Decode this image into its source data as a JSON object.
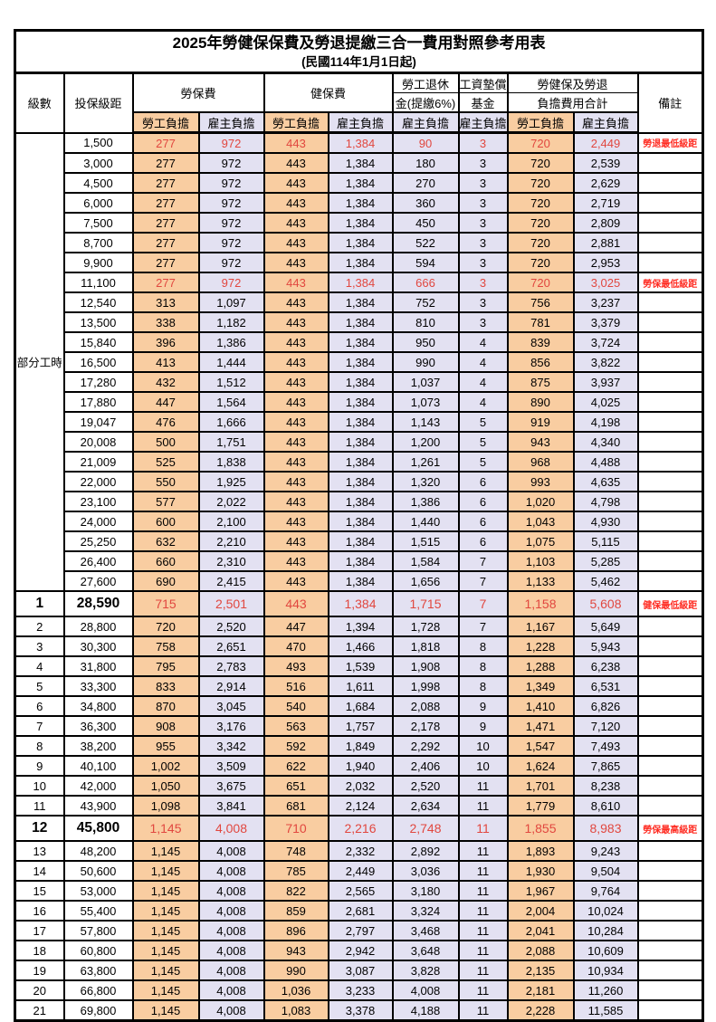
{
  "title": "2025年勞健保保費及勞退提繳三合一費用對照參考用表",
  "subtitle": "(民國114年1月1日起)",
  "colors": {
    "employee_bg": "#f9cda1",
    "employer_bg": "#e3e1f2",
    "value_red": "#e1473f",
    "remark_red": "#ff2d23",
    "border": "#000000"
  },
  "header": {
    "level": "級數",
    "bracket": "投保級距",
    "labor_insurance": "勞保費",
    "health_insurance": "健保費",
    "pension_line1": "勞工退休",
    "pension_line2": "金(提繳6%)",
    "wage_fund_line1": "工資墊償",
    "wage_fund_line2": "基金",
    "total_line1": "勞健保及勞退",
    "total_line2": "負擔費用合計",
    "remark": "備註",
    "employee": "勞工負擔",
    "employer": "雇主負擔"
  },
  "part_time_label": "部分工時",
  "rows": [
    {
      "level": null,
      "bracket": "1,500",
      "values": [
        "277",
        "972",
        "443",
        "1,384",
        "90",
        "3",
        "720",
        "2,449"
      ],
      "remark": "勞退最低級距",
      "red": true,
      "em": false
    },
    {
      "level": null,
      "bracket": "3,000",
      "values": [
        "277",
        "972",
        "443",
        "1,384",
        "180",
        "3",
        "720",
        "2,539"
      ],
      "remark": "",
      "red": false,
      "em": false
    },
    {
      "level": null,
      "bracket": "4,500",
      "values": [
        "277",
        "972",
        "443",
        "1,384",
        "270",
        "3",
        "720",
        "2,629"
      ],
      "remark": "",
      "red": false,
      "em": false
    },
    {
      "level": null,
      "bracket": "6,000",
      "values": [
        "277",
        "972",
        "443",
        "1,384",
        "360",
        "3",
        "720",
        "2,719"
      ],
      "remark": "",
      "red": false,
      "em": false
    },
    {
      "level": null,
      "bracket": "7,500",
      "values": [
        "277",
        "972",
        "443",
        "1,384",
        "450",
        "3",
        "720",
        "2,809"
      ],
      "remark": "",
      "red": false,
      "em": false
    },
    {
      "level": null,
      "bracket": "8,700",
      "values": [
        "277",
        "972",
        "443",
        "1,384",
        "522",
        "3",
        "720",
        "2,881"
      ],
      "remark": "",
      "red": false,
      "em": false
    },
    {
      "level": null,
      "bracket": "9,900",
      "values": [
        "277",
        "972",
        "443",
        "1,384",
        "594",
        "3",
        "720",
        "2,953"
      ],
      "remark": "",
      "red": false,
      "em": false
    },
    {
      "level": null,
      "bracket": "11,100",
      "values": [
        "277",
        "972",
        "443",
        "1,384",
        "666",
        "3",
        "720",
        "3,025"
      ],
      "remark": "勞保最低級距",
      "red": true,
      "em": false
    },
    {
      "level": null,
      "bracket": "12,540",
      "values": [
        "313",
        "1,097",
        "443",
        "1,384",
        "752",
        "3",
        "756",
        "3,237"
      ],
      "remark": "",
      "red": false,
      "em": false
    },
    {
      "level": null,
      "bracket": "13,500",
      "values": [
        "338",
        "1,182",
        "443",
        "1,384",
        "810",
        "3",
        "781",
        "3,379"
      ],
      "remark": "",
      "red": false,
      "em": false
    },
    {
      "level": null,
      "bracket": "15,840",
      "values": [
        "396",
        "1,386",
        "443",
        "1,384",
        "950",
        "4",
        "839",
        "3,724"
      ],
      "remark": "",
      "red": false,
      "em": false
    },
    {
      "level": null,
      "bracket": "16,500",
      "values": [
        "413",
        "1,444",
        "443",
        "1,384",
        "990",
        "4",
        "856",
        "3,822"
      ],
      "remark": "",
      "red": false,
      "em": false
    },
    {
      "level": null,
      "bracket": "17,280",
      "values": [
        "432",
        "1,512",
        "443",
        "1,384",
        "1,037",
        "4",
        "875",
        "3,937"
      ],
      "remark": "",
      "red": false,
      "em": false
    },
    {
      "level": null,
      "bracket": "17,880",
      "values": [
        "447",
        "1,564",
        "443",
        "1,384",
        "1,073",
        "4",
        "890",
        "4,025"
      ],
      "remark": "",
      "red": false,
      "em": false
    },
    {
      "level": null,
      "bracket": "19,047",
      "values": [
        "476",
        "1,666",
        "443",
        "1,384",
        "1,143",
        "5",
        "919",
        "4,198"
      ],
      "remark": "",
      "red": false,
      "em": false
    },
    {
      "level": null,
      "bracket": "20,008",
      "values": [
        "500",
        "1,751",
        "443",
        "1,384",
        "1,200",
        "5",
        "943",
        "4,340"
      ],
      "remark": "",
      "red": false,
      "em": false
    },
    {
      "level": null,
      "bracket": "21,009",
      "values": [
        "525",
        "1,838",
        "443",
        "1,384",
        "1,261",
        "5",
        "968",
        "4,488"
      ],
      "remark": "",
      "red": false,
      "em": false
    },
    {
      "level": null,
      "bracket": "22,000",
      "values": [
        "550",
        "1,925",
        "443",
        "1,384",
        "1,320",
        "6",
        "993",
        "4,635"
      ],
      "remark": "",
      "red": false,
      "em": false
    },
    {
      "level": null,
      "bracket": "23,100",
      "values": [
        "577",
        "2,022",
        "443",
        "1,384",
        "1,386",
        "6",
        "1,020",
        "4,798"
      ],
      "remark": "",
      "red": false,
      "em": false
    },
    {
      "level": null,
      "bracket": "24,000",
      "values": [
        "600",
        "2,100",
        "443",
        "1,384",
        "1,440",
        "6",
        "1,043",
        "4,930"
      ],
      "remark": "",
      "red": false,
      "em": false
    },
    {
      "level": null,
      "bracket": "25,250",
      "values": [
        "632",
        "2,210",
        "443",
        "1,384",
        "1,515",
        "6",
        "1,075",
        "5,115"
      ],
      "remark": "",
      "red": false,
      "em": false
    },
    {
      "level": null,
      "bracket": "26,400",
      "values": [
        "660",
        "2,310",
        "443",
        "1,384",
        "1,584",
        "7",
        "1,103",
        "5,285"
      ],
      "remark": "",
      "red": false,
      "em": false
    },
    {
      "level": null,
      "bracket": "27,600",
      "values": [
        "690",
        "2,415",
        "443",
        "1,384",
        "1,656",
        "7",
        "1,133",
        "5,462"
      ],
      "remark": "",
      "red": false,
      "em": false
    },
    {
      "level": "1",
      "bracket": "28,590",
      "values": [
        "715",
        "2,501",
        "443",
        "1,384",
        "1,715",
        "7",
        "1,158",
        "5,608"
      ],
      "remark": "健保最低級距",
      "red": true,
      "em": true
    },
    {
      "level": "2",
      "bracket": "28,800",
      "values": [
        "720",
        "2,520",
        "447",
        "1,394",
        "1,728",
        "7",
        "1,167",
        "5,649"
      ],
      "remark": "",
      "red": false,
      "em": false
    },
    {
      "level": "3",
      "bracket": "30,300",
      "values": [
        "758",
        "2,651",
        "470",
        "1,466",
        "1,818",
        "8",
        "1,228",
        "5,943"
      ],
      "remark": "",
      "red": false,
      "em": false
    },
    {
      "level": "4",
      "bracket": "31,800",
      "values": [
        "795",
        "2,783",
        "493",
        "1,539",
        "1,908",
        "8",
        "1,288",
        "6,238"
      ],
      "remark": "",
      "red": false,
      "em": false
    },
    {
      "level": "5",
      "bracket": "33,300",
      "values": [
        "833",
        "2,914",
        "516",
        "1,611",
        "1,998",
        "8",
        "1,349",
        "6,531"
      ],
      "remark": "",
      "red": false,
      "em": false
    },
    {
      "level": "6",
      "bracket": "34,800",
      "values": [
        "870",
        "3,045",
        "540",
        "1,684",
        "2,088",
        "9",
        "1,410",
        "6,826"
      ],
      "remark": "",
      "red": false,
      "em": false
    },
    {
      "level": "7",
      "bracket": "36,300",
      "values": [
        "908",
        "3,176",
        "563",
        "1,757",
        "2,178",
        "9",
        "1,471",
        "7,120"
      ],
      "remark": "",
      "red": false,
      "em": false
    },
    {
      "level": "8",
      "bracket": "38,200",
      "values": [
        "955",
        "3,342",
        "592",
        "1,849",
        "2,292",
        "10",
        "1,547",
        "7,493"
      ],
      "remark": "",
      "red": false,
      "em": false
    },
    {
      "level": "9",
      "bracket": "40,100",
      "values": [
        "1,002",
        "3,509",
        "622",
        "1,940",
        "2,406",
        "10",
        "1,624",
        "7,865"
      ],
      "remark": "",
      "red": false,
      "em": false
    },
    {
      "level": "10",
      "bracket": "42,000",
      "values": [
        "1,050",
        "3,675",
        "651",
        "2,032",
        "2,520",
        "11",
        "1,701",
        "8,238"
      ],
      "remark": "",
      "red": false,
      "em": false
    },
    {
      "level": "11",
      "bracket": "43,900",
      "values": [
        "1,098",
        "3,841",
        "681",
        "2,124",
        "2,634",
        "11",
        "1,779",
        "8,610"
      ],
      "remark": "",
      "red": false,
      "em": false
    },
    {
      "level": "12",
      "bracket": "45,800",
      "values": [
        "1,145",
        "4,008",
        "710",
        "2,216",
        "2,748",
        "11",
        "1,855",
        "8,983"
      ],
      "remark": "勞保最高級距",
      "red": true,
      "em": true
    },
    {
      "level": "13",
      "bracket": "48,200",
      "values": [
        "1,145",
        "4,008",
        "748",
        "2,332",
        "2,892",
        "11",
        "1,893",
        "9,243"
      ],
      "remark": "",
      "red": false,
      "em": false
    },
    {
      "level": "14",
      "bracket": "50,600",
      "values": [
        "1,145",
        "4,008",
        "785",
        "2,449",
        "3,036",
        "11",
        "1,930",
        "9,504"
      ],
      "remark": "",
      "red": false,
      "em": false
    },
    {
      "level": "15",
      "bracket": "53,000",
      "values": [
        "1,145",
        "4,008",
        "822",
        "2,565",
        "3,180",
        "11",
        "1,967",
        "9,764"
      ],
      "remark": "",
      "red": false,
      "em": false
    },
    {
      "level": "16",
      "bracket": "55,400",
      "values": [
        "1,145",
        "4,008",
        "859",
        "2,681",
        "3,324",
        "11",
        "2,004",
        "10,024"
      ],
      "remark": "",
      "red": false,
      "em": false
    },
    {
      "level": "17",
      "bracket": "57,800",
      "values": [
        "1,145",
        "4,008",
        "896",
        "2,797",
        "3,468",
        "11",
        "2,041",
        "10,284"
      ],
      "remark": "",
      "red": false,
      "em": false
    },
    {
      "level": "18",
      "bracket": "60,800",
      "values": [
        "1,145",
        "4,008",
        "943",
        "2,942",
        "3,648",
        "11",
        "2,088",
        "10,609"
      ],
      "remark": "",
      "red": false,
      "em": false
    },
    {
      "level": "19",
      "bracket": "63,800",
      "values": [
        "1,145",
        "4,008",
        "990",
        "3,087",
        "3,828",
        "11",
        "2,135",
        "10,934"
      ],
      "remark": "",
      "red": false,
      "em": false
    },
    {
      "level": "20",
      "bracket": "66,800",
      "values": [
        "1,145",
        "4,008",
        "1,036",
        "3,233",
        "4,008",
        "11",
        "2,181",
        "11,260"
      ],
      "remark": "",
      "red": false,
      "em": false
    },
    {
      "level": "21",
      "bracket": "69,800",
      "values": [
        "1,145",
        "4,008",
        "1,083",
        "3,378",
        "4,188",
        "11",
        "2,228",
        "11,585"
      ],
      "remark": "",
      "red": false,
      "em": false
    }
  ]
}
